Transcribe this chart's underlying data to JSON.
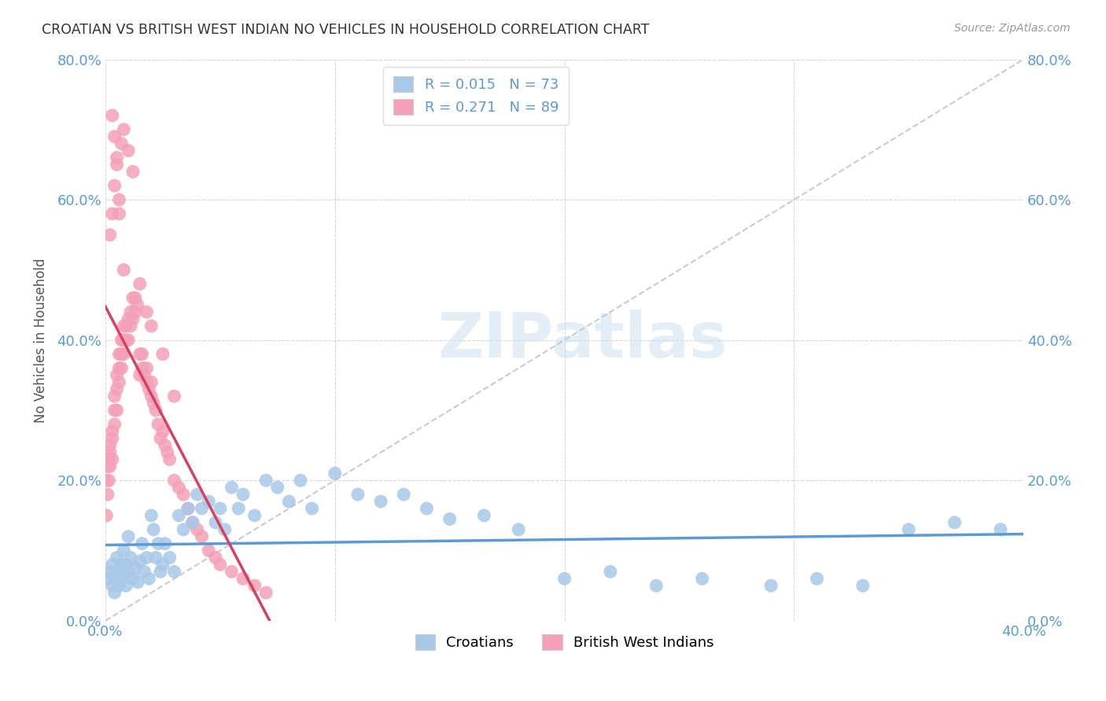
{
  "title": "CROATIAN VS BRITISH WEST INDIAN NO VEHICLES IN HOUSEHOLD CORRELATION CHART",
  "source": "Source: ZipAtlas.com",
  "ylabel": "No Vehicles in Household",
  "xlim": [
    0.0,
    0.4
  ],
  "ylim": [
    0.0,
    0.8
  ],
  "xticks": [
    0.0,
    0.1,
    0.2,
    0.3,
    0.4
  ],
  "yticks": [
    0.0,
    0.2,
    0.4,
    0.6,
    0.8
  ],
  "xtick_labels": [
    "0.0%",
    "",
    "",
    "",
    "40.0%"
  ],
  "ytick_labels": [
    "0.0%",
    "20.0%",
    "40.0%",
    "60.0%",
    "80.0%"
  ],
  "croatian_color": "#a8c8e8",
  "bwi_color": "#f4a0b8",
  "croatian_R": 0.015,
  "croatian_N": 73,
  "bwi_R": 0.271,
  "bwi_N": 89,
  "legend_croatians": "Croatians",
  "legend_bwi": "British West Indians",
  "watermark": "ZIPatlas",
  "axis_color": "#5b9bd5",
  "croatian_line_color": "#5b9bd5",
  "bwi_line_color": "#d94060",
  "ref_line_color": "#cccccc",
  "croatian_x": [
    0.001,
    0.002,
    0.003,
    0.003,
    0.004,
    0.004,
    0.005,
    0.005,
    0.006,
    0.006,
    0.007,
    0.007,
    0.008,
    0.008,
    0.009,
    0.009,
    0.01,
    0.01,
    0.011,
    0.012,
    0.013,
    0.014,
    0.015,
    0.016,
    0.017,
    0.018,
    0.019,
    0.02,
    0.021,
    0.022,
    0.023,
    0.024,
    0.025,
    0.026,
    0.028,
    0.03,
    0.032,
    0.034,
    0.036,
    0.038,
    0.04,
    0.042,
    0.045,
    0.048,
    0.05,
    0.052,
    0.055,
    0.058,
    0.06,
    0.065,
    0.07,
    0.075,
    0.08,
    0.085,
    0.09,
    0.1,
    0.11,
    0.12,
    0.13,
    0.14,
    0.15,
    0.165,
    0.18,
    0.2,
    0.22,
    0.24,
    0.26,
    0.29,
    0.31,
    0.33,
    0.35,
    0.37,
    0.39
  ],
  "croatian_y": [
    0.06,
    0.07,
    0.08,
    0.05,
    0.06,
    0.04,
    0.07,
    0.09,
    0.05,
    0.06,
    0.08,
    0.06,
    0.1,
    0.07,
    0.05,
    0.08,
    0.12,
    0.07,
    0.09,
    0.06,
    0.075,
    0.055,
    0.085,
    0.11,
    0.07,
    0.09,
    0.06,
    0.15,
    0.13,
    0.09,
    0.11,
    0.07,
    0.08,
    0.11,
    0.09,
    0.07,
    0.15,
    0.13,
    0.16,
    0.14,
    0.18,
    0.16,
    0.17,
    0.14,
    0.16,
    0.13,
    0.19,
    0.16,
    0.18,
    0.15,
    0.2,
    0.19,
    0.17,
    0.2,
    0.16,
    0.21,
    0.18,
    0.17,
    0.18,
    0.16,
    0.145,
    0.15,
    0.13,
    0.06,
    0.07,
    0.05,
    0.06,
    0.05,
    0.06,
    0.05,
    0.13,
    0.14,
    0.13
  ],
  "bwi_x": [
    0.0005,
    0.0005,
    0.001,
    0.001,
    0.0015,
    0.0015,
    0.002,
    0.002,
    0.002,
    0.003,
    0.003,
    0.003,
    0.004,
    0.004,
    0.004,
    0.005,
    0.005,
    0.005,
    0.006,
    0.006,
    0.006,
    0.007,
    0.007,
    0.007,
    0.008,
    0.008,
    0.008,
    0.009,
    0.009,
    0.01,
    0.01,
    0.011,
    0.011,
    0.012,
    0.012,
    0.013,
    0.013,
    0.014,
    0.015,
    0.015,
    0.016,
    0.016,
    0.017,
    0.018,
    0.018,
    0.019,
    0.02,
    0.02,
    0.021,
    0.022,
    0.023,
    0.024,
    0.025,
    0.026,
    0.027,
    0.028,
    0.03,
    0.032,
    0.034,
    0.036,
    0.038,
    0.04,
    0.042,
    0.045,
    0.048,
    0.05,
    0.055,
    0.06,
    0.065,
    0.07,
    0.002,
    0.003,
    0.004,
    0.005,
    0.006,
    0.007,
    0.008,
    0.01,
    0.012,
    0.015,
    0.018,
    0.02,
    0.025,
    0.03,
    0.003,
    0.004,
    0.005,
    0.006,
    0.008
  ],
  "bwi_y": [
    0.15,
    0.2,
    0.18,
    0.22,
    0.2,
    0.23,
    0.22,
    0.24,
    0.25,
    0.23,
    0.26,
    0.27,
    0.28,
    0.3,
    0.32,
    0.3,
    0.33,
    0.35,
    0.34,
    0.36,
    0.38,
    0.36,
    0.38,
    0.4,
    0.38,
    0.4,
    0.42,
    0.4,
    0.42,
    0.4,
    0.43,
    0.42,
    0.44,
    0.43,
    0.46,
    0.44,
    0.46,
    0.45,
    0.35,
    0.38,
    0.36,
    0.38,
    0.35,
    0.34,
    0.36,
    0.33,
    0.32,
    0.34,
    0.31,
    0.3,
    0.28,
    0.26,
    0.27,
    0.25,
    0.24,
    0.23,
    0.2,
    0.19,
    0.18,
    0.16,
    0.14,
    0.13,
    0.12,
    0.1,
    0.09,
    0.08,
    0.07,
    0.06,
    0.05,
    0.04,
    0.55,
    0.58,
    0.62,
    0.65,
    0.6,
    0.68,
    0.7,
    0.67,
    0.64,
    0.48,
    0.44,
    0.42,
    0.38,
    0.32,
    0.72,
    0.69,
    0.66,
    0.58,
    0.5
  ]
}
